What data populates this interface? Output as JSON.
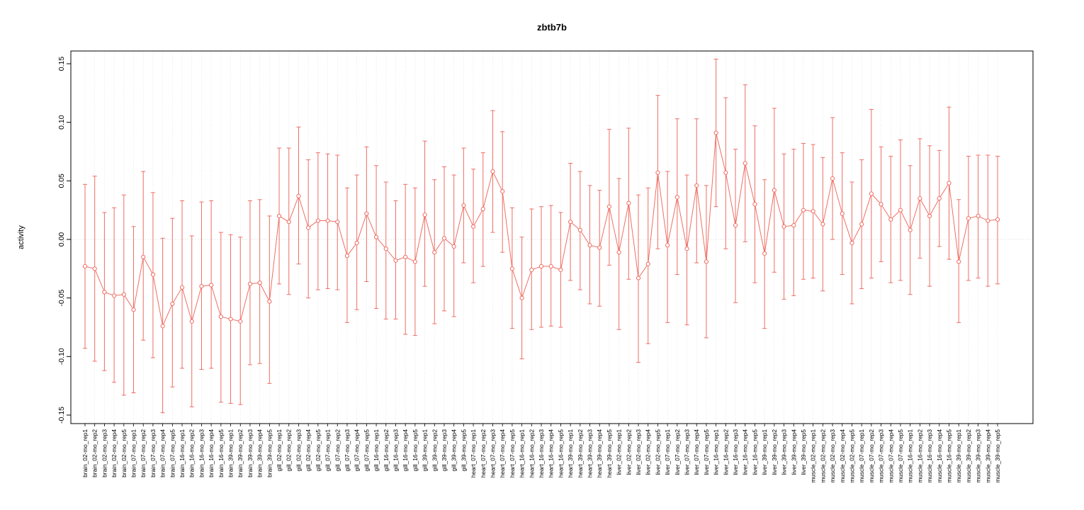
{
  "chart_data": {
    "type": "line",
    "subtype": "points-with-error-bars",
    "title": "zbtb7b",
    "ylabel": "activity",
    "xlabel": "",
    "ylim": [
      -0.15,
      0.15
    ],
    "yticks": [
      -0.15,
      -0.1,
      -0.05,
      0.0,
      0.05,
      0.1,
      0.15
    ],
    "grid": "vertical-dotted-per-category, dotted-zero-line",
    "legend": "none",
    "point_style": "open-circle",
    "series_color": "#ee6e64",
    "grid_color": "#d9d9d9",
    "frame_color": "#000000",
    "categories": [
      "brain_02-mo_rep1",
      "brain_02-mo_rep2",
      "brain_02-mo_rep3",
      "brain_02-mo_rep4",
      "brain_02-mo_rep5",
      "brain_07-mo_rep1",
      "brain_07-mo_rep2",
      "brain_07-mo_rep3",
      "brain_07-mo_rep4",
      "brain_07-mo_rep5",
      "brain_16-mo_rep1",
      "brain_16-mo_rep2",
      "brain_16-mo_rep3",
      "brain_16-mo_rep4",
      "brain_16-mo_rep5",
      "brain_39-mo_rep1",
      "brain_39-mo_rep2",
      "brain_39-mo_rep3",
      "brain_39-mo_rep4",
      "brain_39-mo_rep5",
      "gill_02-mo_rep1",
      "gill_02-mo_rep2",
      "gill_02-mo_rep3",
      "gill_02-mo_rep4",
      "gill_02-mo_rep5",
      "gill_07-mo_rep1",
      "gill_07-mo_rep2",
      "gill_07-mo_rep3",
      "gill_07-mo_rep4",
      "gill_07-mo_rep5",
      "gill_16-mo_rep1",
      "gill_16-mo_rep2",
      "gill_16-mo_rep3",
      "gill_16-mo_rep4",
      "gill_16-mo_rep5",
      "gill_39-mo_rep1",
      "gill_39-mo_rep2",
      "gill_39-mo_rep3",
      "gill_39-mo_rep4",
      "gill_39-mo_rep5",
      "heart_07-mo_rep1",
      "heart_07-mo_rep2",
      "heart_07-mo_rep3",
      "heart_07-mo_rep4",
      "heart_07-mo_rep5",
      "heart_16-mo_rep1",
      "heart_16-mo_rep2",
      "heart_16-mo_rep3",
      "heart_16-mo_rep4",
      "heart_16-mo_rep5",
      "heart_39-mo_rep1",
      "heart_39-mo_rep2",
      "heart_39-mo_rep3",
      "heart_39-mo_rep4",
      "heart_39-mo_rep5",
      "liver_02-mo_rep1",
      "liver_02-mo_rep2",
      "liver_02-mo_rep3",
      "liver_02-mo_rep4",
      "liver_02-mo_rep5",
      "liver_07-mo_rep1",
      "liver_07-mo_rep2",
      "liver_07-mo_rep3",
      "liver_07-mo_rep4",
      "liver_07-mo_rep5",
      "liver_16-mo_rep1",
      "liver_16-mo_rep2",
      "liver_16-mo_rep3",
      "liver_16-mo_rep4",
      "liver_16-mo_rep5",
      "liver_39-mo_rep1",
      "liver_39-mo_rep2",
      "liver_39-mo_rep3",
      "liver_39-mo_rep4",
      "liver_39-mo_rep5",
      "muscle_02-mo_rep1",
      "muscle_02-mo_rep2",
      "muscle_02-mo_rep3",
      "muscle_02-mo_rep4",
      "muscle_02-mo_rep5",
      "muscle_07-mo_rep1",
      "muscle_07-mo_rep2",
      "muscle_07-mo_rep3",
      "muscle_07-mo_rep4",
      "muscle_07-mo_rep5",
      "muscle_16-mo_rep1",
      "muscle_16-mo_rep2",
      "muscle_16-mo_rep3",
      "muscle_16-mo_rep4",
      "muscle_16-mo_rep5",
      "muscle_39-mo_rep1",
      "muscle_39-mo_rep2",
      "muscle_39-mo_rep3",
      "muscle_39-mo_rep4",
      "muscle_39-mo_rep5"
    ],
    "values": [
      -0.023,
      -0.025,
      -0.045,
      -0.048,
      -0.047,
      -0.06,
      -0.015,
      -0.03,
      -0.074,
      -0.055,
      -0.041,
      -0.07,
      -0.04,
      -0.039,
      -0.066,
      -0.068,
      -0.07,
      -0.038,
      -0.037,
      -0.053,
      0.02,
      0.015,
      0.037,
      0.01,
      0.016,
      0.016,
      0.015,
      -0.014,
      -0.003,
      0.022,
      0.002,
      -0.008,
      -0.018,
      -0.015,
      -0.019,
      0.021,
      -0.011,
      0.001,
      -0.006,
      0.029,
      0.011,
      0.026,
      0.058,
      0.041,
      -0.025,
      -0.05,
      -0.026,
      -0.023,
      -0.023,
      -0.026,
      0.015,
      0.008,
      -0.005,
      -0.007,
      0.028,
      -0.011,
      0.031,
      -0.033,
      -0.021,
      0.057,
      -0.005,
      0.036,
      -0.008,
      0.046,
      -0.019,
      0.091,
      0.057,
      0.012,
      0.065,
      0.03,
      -0.012,
      0.042,
      0.011,
      0.012,
      0.025,
      0.024,
      0.013,
      0.052,
      0.022,
      -0.003,
      0.013,
      0.039,
      0.03,
      0.017,
      0.025,
      0.008,
      0.035,
      0.02,
      0.035,
      0.048,
      -0.019,
      0.018,
      0.02,
      0.016,
      0.017
    ],
    "lower": [
      -0.093,
      -0.104,
      -0.112,
      -0.122,
      -0.133,
      -0.131,
      -0.086,
      -0.101,
      -0.148,
      -0.126,
      -0.11,
      -0.143,
      -0.111,
      -0.11,
      -0.139,
      -0.14,
      -0.141,
      -0.107,
      -0.106,
      -0.123,
      -0.038,
      -0.047,
      -0.021,
      -0.05,
      -0.043,
      -0.042,
      -0.043,
      -0.071,
      -0.06,
      -0.036,
      -0.059,
      -0.068,
      -0.068,
      -0.081,
      -0.082,
      -0.04,
      -0.072,
      -0.061,
      -0.066,
      -0.02,
      -0.037,
      -0.023,
      0.006,
      -0.011,
      -0.076,
      -0.102,
      -0.077,
      -0.075,
      -0.074,
      -0.075,
      -0.035,
      -0.043,
      -0.055,
      -0.057,
      -0.022,
      -0.077,
      -0.034,
      -0.105,
      -0.089,
      -0.008,
      -0.071,
      -0.03,
      -0.073,
      -0.02,
      -0.084,
      0.028,
      -0.008,
      -0.054,
      -0.002,
      -0.037,
      -0.076,
      -0.028,
      -0.051,
      -0.048,
      -0.034,
      -0.033,
      -0.044,
      0.0,
      -0.03,
      -0.055,
      -0.042,
      -0.033,
      -0.019,
      -0.037,
      -0.035,
      -0.047,
      -0.016,
      -0.04,
      -0.006,
      -0.017,
      -0.071,
      -0.035,
      -0.033,
      -0.04,
      -0.038
    ],
    "upper": [
      0.047,
      0.054,
      0.023,
      0.027,
      0.038,
      0.011,
      0.058,
      0.04,
      0.001,
      0.018,
      0.033,
      0.003,
      0.032,
      0.033,
      0.006,
      0.004,
      0.002,
      0.033,
      0.034,
      0.02,
      0.078,
      0.078,
      0.096,
      0.068,
      0.074,
      0.073,
      0.072,
      0.044,
      0.055,
      0.079,
      0.063,
      0.049,
      0.033,
      0.047,
      0.044,
      0.084,
      0.051,
      0.062,
      0.055,
      0.078,
      0.06,
      0.074,
      0.11,
      0.092,
      0.027,
      0.002,
      0.026,
      0.028,
      0.029,
      0.023,
      0.065,
      0.058,
      0.046,
      0.042,
      0.094,
      0.052,
      0.095,
      0.038,
      0.044,
      0.123,
      0.058,
      0.103,
      0.055,
      0.103,
      0.046,
      0.154,
      0.121,
      0.077,
      0.132,
      0.097,
      0.051,
      0.112,
      0.073,
      0.077,
      0.082,
      0.081,
      0.07,
      0.104,
      0.074,
      0.049,
      0.068,
      0.111,
      0.079,
      0.071,
      0.085,
      0.063,
      0.086,
      0.08,
      0.076,
      0.113,
      0.034,
      0.071,
      0.072,
      0.072,
      0.071
    ]
  }
}
